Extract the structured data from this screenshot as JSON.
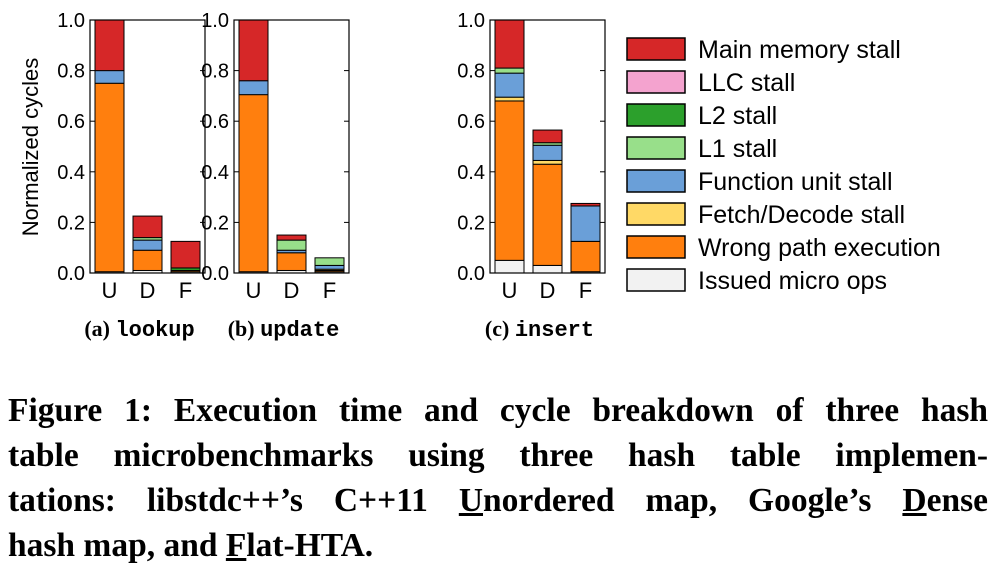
{
  "chart_data": {
    "type": "bar",
    "stacked": true,
    "ylabel": "Normalized cycles",
    "ylim": [
      0,
      1.0
    ],
    "yticks": [
      "0.0",
      "0.2",
      "0.4",
      "0.6",
      "0.8",
      "1.0"
    ],
    "categories": [
      "U",
      "D",
      "F"
    ],
    "legend_position": "right",
    "series": [
      {
        "name": "Issued micro ops",
        "color": "#f2f2f2"
      },
      {
        "name": "Wrong path execution",
        "color": "#ff7f0e"
      },
      {
        "name": "Fetch/Decode stall",
        "color": "#ffd966"
      },
      {
        "name": "Function unit stall",
        "color": "#6a9fd8"
      },
      {
        "name": "L1 stall",
        "color": "#98df8a"
      },
      {
        "name": "L2 stall",
        "color": "#2ca02c"
      },
      {
        "name": "LLC stall",
        "color": "#f4a3cf"
      },
      {
        "name": "Main memory stall",
        "color": "#d62728"
      }
    ],
    "legend_order": [
      "Main memory stall",
      "LLC stall",
      "L2 stall",
      "L1 stall",
      "Function unit stall",
      "Fetch/Decode stall",
      "Wrong path execution",
      "Issued micro ops"
    ],
    "panels": [
      {
        "caption_prefix": "(a)",
        "caption_name": "lookup",
        "stacks": {
          "U": [
            0.005,
            0.745,
            0.0,
            0.05,
            0.0,
            0.0,
            0.0,
            0.2
          ],
          "D": [
            0.01,
            0.08,
            0.0,
            0.04,
            0.01,
            0.0,
            0.0,
            0.085
          ],
          "F": [
            0.005,
            0.005,
            0.0,
            0.0,
            0.0,
            0.01,
            0.0,
            0.105
          ]
        }
      },
      {
        "caption_prefix": "(b)",
        "caption_name": "update",
        "stacks": {
          "U": [
            0.005,
            0.7,
            0.0,
            0.055,
            0.0,
            0.0,
            0.0,
            0.24
          ],
          "D": [
            0.01,
            0.07,
            0.0,
            0.01,
            0.04,
            0.0,
            0.0,
            0.02
          ],
          "F": [
            0.005,
            0.005,
            0.005,
            0.015,
            0.03,
            0.0,
            0.0,
            0.0
          ]
        }
      },
      {
        "caption_prefix": "(c)",
        "caption_name": "insert",
        "stacks": {
          "U": [
            0.05,
            0.63,
            0.015,
            0.095,
            0.02,
            0.0,
            0.0,
            0.19
          ],
          "D": [
            0.03,
            0.4,
            0.015,
            0.06,
            0.01,
            0.0,
            0.0,
            0.05
          ],
          "F": [
            0.005,
            0.12,
            0.0,
            0.14,
            0.0,
            0.0,
            0.0,
            0.01
          ]
        }
      }
    ]
  },
  "caption": {
    "lines": [
      [
        {
          "t": "Figure 1: Execution time and cycle breakdown of three hash"
        }
      ],
      [
        {
          "t": "table microbenchmarks using three hash table implemen-"
        }
      ],
      [
        {
          "t": "tations: libstdc++’s C++11 "
        },
        {
          "t": "U",
          "u": true
        },
        {
          "t": "nordered map, Google’s "
        },
        {
          "t": "D",
          "u": true
        },
        {
          "t": "ense"
        }
      ],
      [
        {
          "t": "hash map, and "
        },
        {
          "t": "F",
          "u": true
        },
        {
          "t": "lat-HTA."
        }
      ]
    ]
  }
}
